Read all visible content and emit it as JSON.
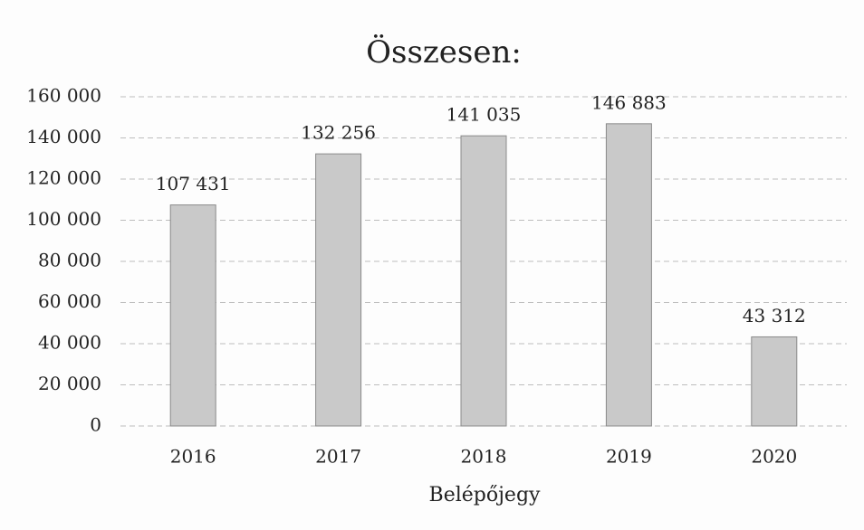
{
  "chart_data": {
    "type": "bar",
    "title": "Összesen:",
    "x_label": "Belépőjegy",
    "categories": [
      "2016",
      "2017",
      "2018",
      "2019",
      "2020"
    ],
    "values": [
      107431,
      132256,
      141035,
      146883,
      43312
    ],
    "value_labels": [
      "107 431",
      "132 256",
      "141 035",
      "146 883",
      "43 312"
    ],
    "color": "#c9c9c9",
    "ylim": [
      0,
      160000
    ],
    "yticks": [
      0,
      {
        "value": 20000,
        "label": "20 000"
      },
      {
        "value": 40000,
        "label": "40 000"
      },
      {
        "value": 60000,
        "label": "60 000"
      },
      {
        "value": 80000,
        "label": "80 000"
      },
      {
        "value": 100000,
        "label": "100 000"
      },
      {
        "value": 120000,
        "label": "120 000"
      },
      {
        "value": 140000,
        "label": "140 000"
      },
      {
        "value": 160000,
        "label": "160 000"
      }
    ],
    "grid": true
  }
}
